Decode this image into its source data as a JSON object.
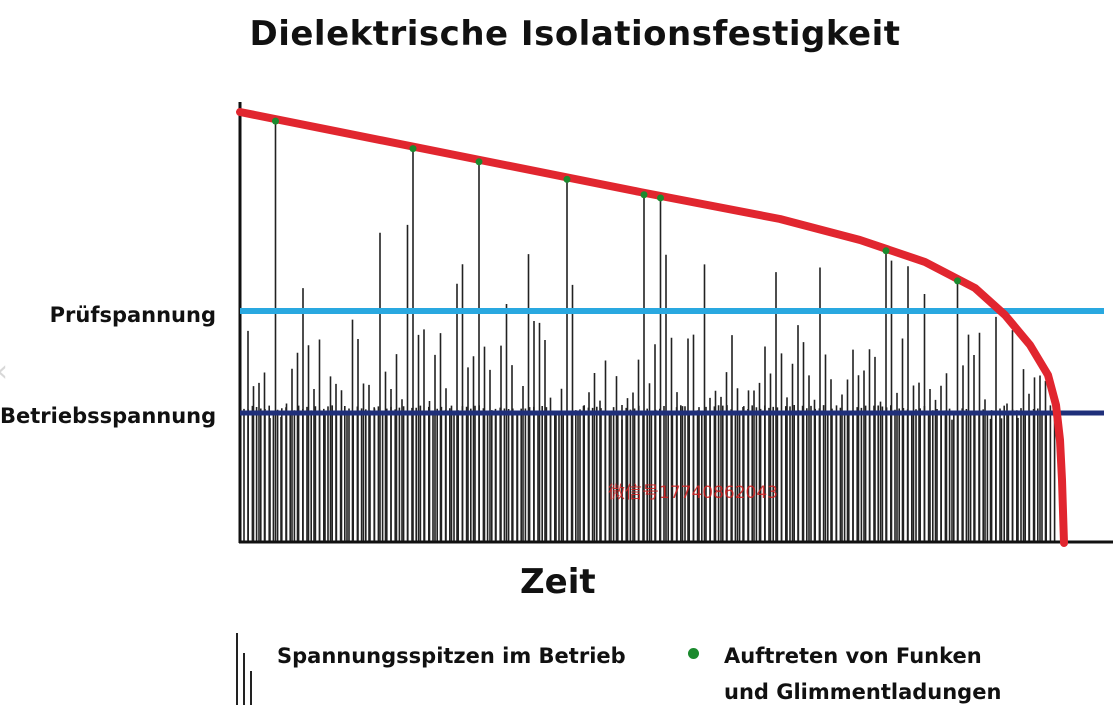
{
  "title": "Dielektrische Isolationsfestigkeit",
  "x_axis_label": "Zeit",
  "levels": {
    "test_voltage_label": "Prüfspannung",
    "operating_voltage_label": "Betriebsspannung"
  },
  "legend": {
    "spikes_label": "Spannungsspitzen im Betrieb",
    "discharge_line1": "Auftreten von Funken",
    "discharge_line2": "und Glimmentladungen"
  },
  "watermark": "微信号17740862043",
  "colors": {
    "strength_curve": "#e1262f",
    "test_voltage_line": "#29a8e0",
    "operating_voltage_line": "#1f2f7a",
    "spikes": "#222222",
    "discharge_dot": "#1b8a2e"
  },
  "icons": {
    "previous": "chevron-left-icon"
  }
}
